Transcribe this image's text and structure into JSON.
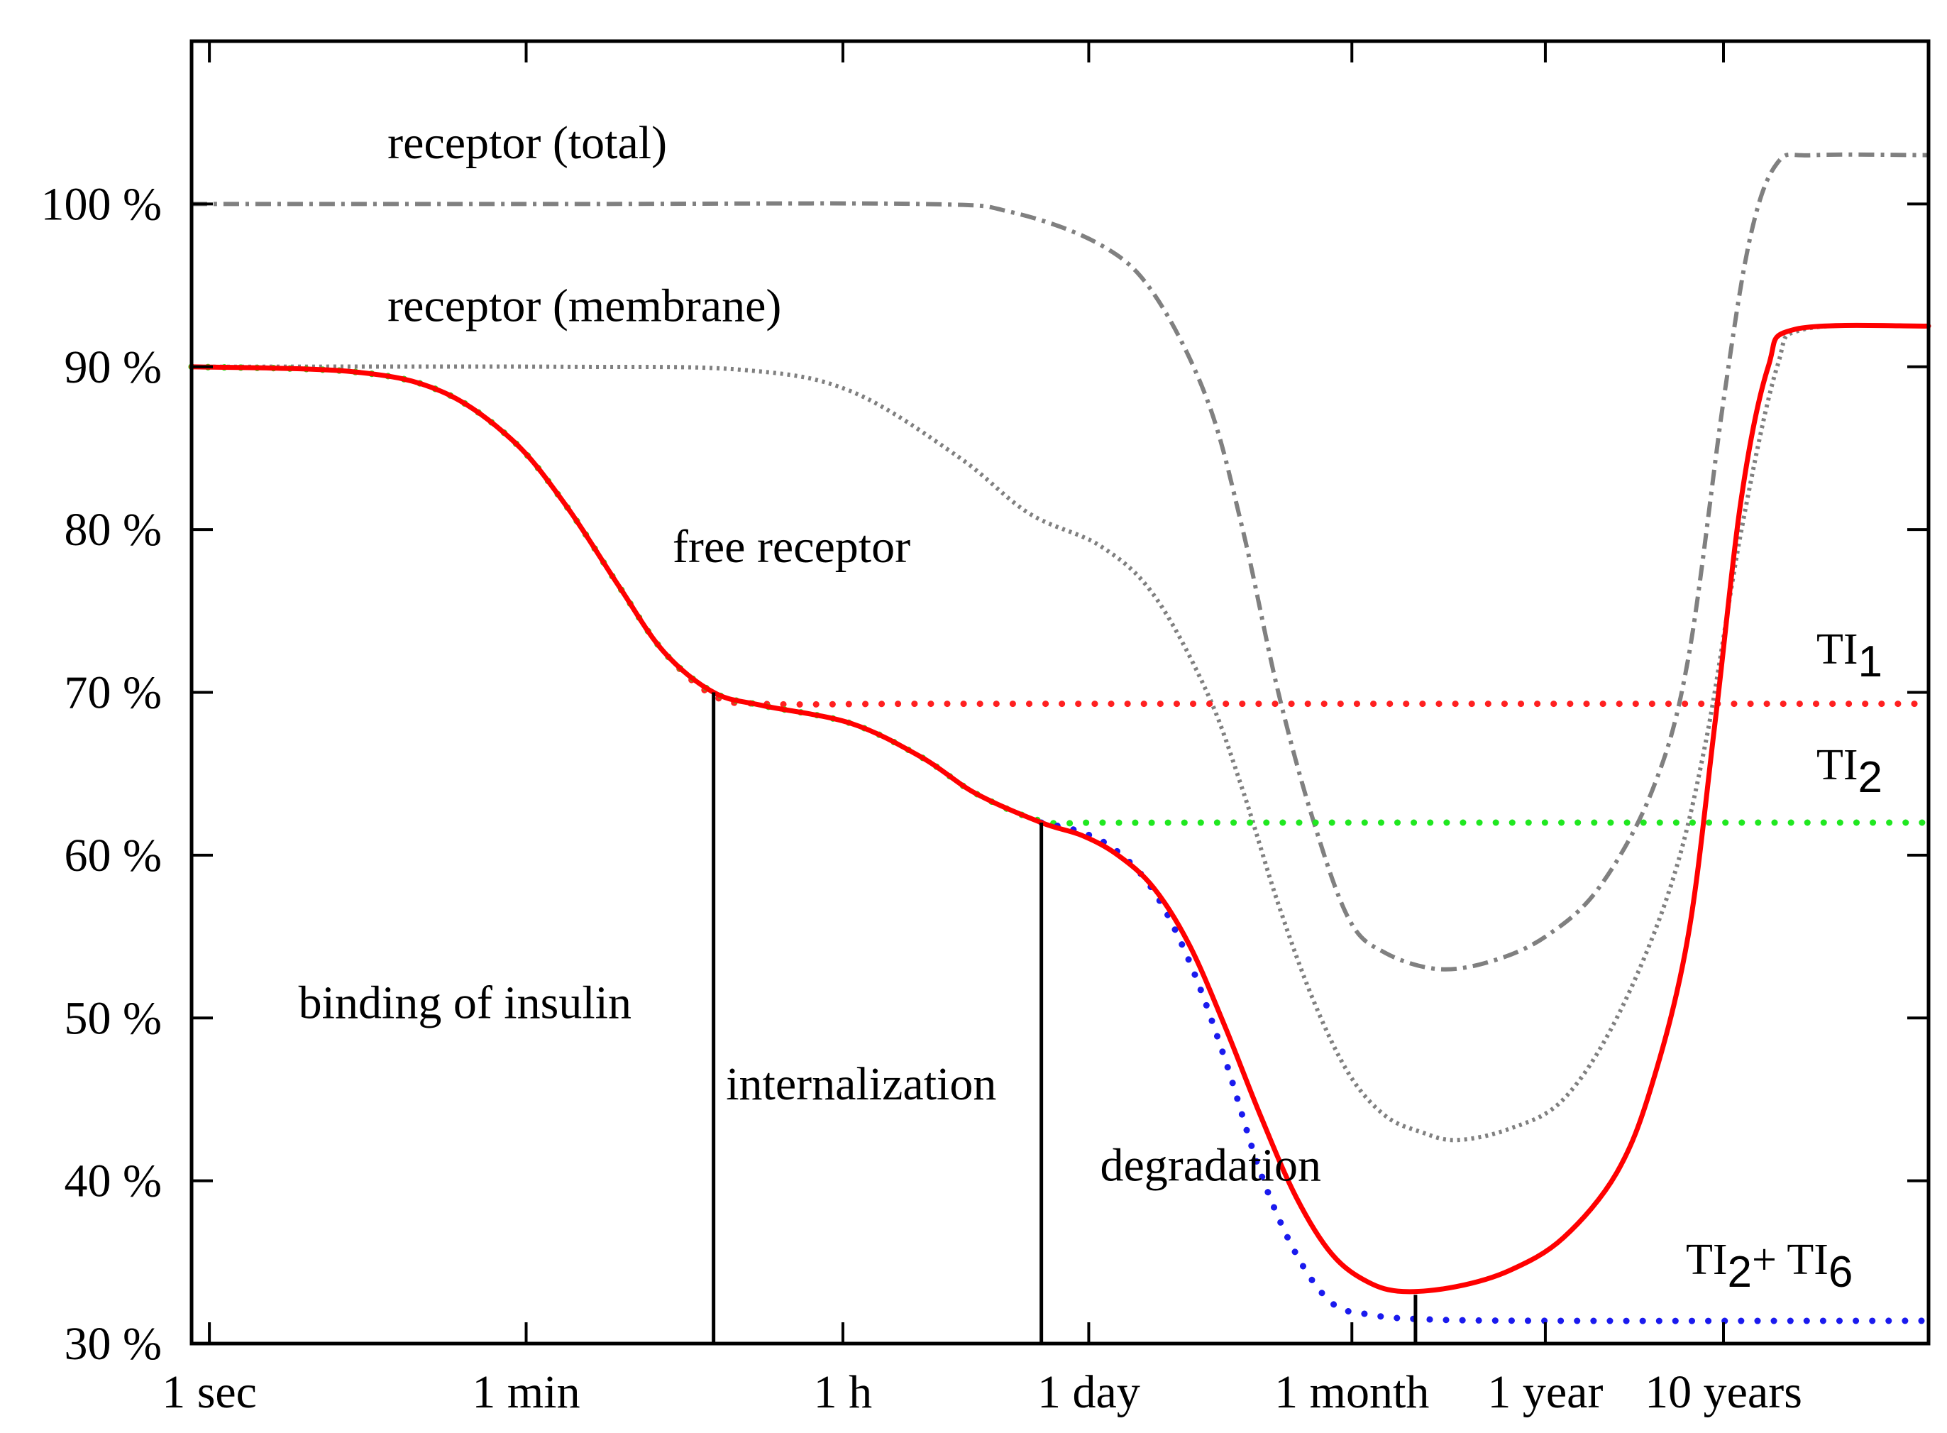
{
  "chart_data": {
    "type": "line",
    "title": "",
    "xlabel": "",
    "ylabel": "",
    "x_scale": "log10 of time in seconds",
    "xlim": [
      -0.1,
      9.65
    ],
    "ylim": [
      30,
      110
    ],
    "grid": false,
    "x_ticks": [
      {
        "value": 0,
        "label": "1 sec"
      },
      {
        "value": 1.778,
        "label": "1 min"
      },
      {
        "value": 3.556,
        "label": "1 h"
      },
      {
        "value": 4.936,
        "label": "1 day"
      },
      {
        "value": 6.413,
        "label": "1 month"
      },
      {
        "value": 7.499,
        "label": "1 year"
      },
      {
        "value": 8.499,
        "label": "10 years"
      }
    ],
    "y_ticks": [
      {
        "value": 30,
        "label": "30 %"
      },
      {
        "value": 40,
        "label": "40 %"
      },
      {
        "value": 50,
        "label": "50 %"
      },
      {
        "value": 60,
        "label": "60 %"
      },
      {
        "value": 70,
        "label": "70 %"
      },
      {
        "value": 80,
        "label": "80 %"
      },
      {
        "value": 90,
        "label": "90 %"
      },
      {
        "value": 100,
        "label": "100 %"
      }
    ],
    "phase_boundaries": [
      {
        "x": 2.83,
        "y_top": 70
      },
      {
        "x": 4.67,
        "y_top": 62
      },
      {
        "x": 6.77,
        "y_top": 33
      }
    ],
    "annotations": [
      {
        "text": "receptor (total)",
        "x": 1.0,
        "y": 102.8
      },
      {
        "text": "receptor (membrane)",
        "x": 1.0,
        "y": 92.8
      },
      {
        "text": "free receptor",
        "x": 2.6,
        "y": 78.0
      },
      {
        "text": "binding of insulin",
        "x": 0.5,
        "y": 50.0
      },
      {
        "text": "internalization",
        "x": 2.9,
        "y": 45.0
      },
      {
        "text": "degradation",
        "x": 5.0,
        "y": 40.0
      }
    ],
    "labels": {
      "ti1": {
        "base": "TI",
        "sub": "1"
      },
      "ti2": {
        "base": "TI",
        "sub": "2"
      },
      "ti26": {
        "base": "TI",
        "sub1": "2",
        "plus": "+ TI",
        "sub2": "6"
      }
    },
    "series": [
      {
        "name": "receptor (total)",
        "color": "#808080",
        "style": "dashdot",
        "points": [
          [
            -0.1,
            100
          ],
          [
            2.0,
            100
          ],
          [
            4.0,
            100
          ],
          [
            4.5,
            99.5
          ],
          [
            5.0,
            97.5
          ],
          [
            5.3,
            94.5
          ],
          [
            5.6,
            88
          ],
          [
            5.8,
            80
          ],
          [
            6.0,
            70
          ],
          [
            6.2,
            62
          ],
          [
            6.4,
            56
          ],
          [
            6.6,
            54
          ],
          [
            6.9,
            53
          ],
          [
            7.2,
            53.5
          ],
          [
            7.5,
            55
          ],
          [
            7.8,
            58
          ],
          [
            8.1,
            64
          ],
          [
            8.3,
            72
          ],
          [
            8.5,
            88
          ],
          [
            8.65,
            98
          ],
          [
            8.8,
            102.5
          ],
          [
            9.0,
            103
          ],
          [
            9.65,
            103
          ]
        ]
      },
      {
        "name": "receptor (membrane)",
        "color": "#808080",
        "style": "dotted",
        "points": [
          [
            -0.1,
            90
          ],
          [
            2.0,
            90
          ],
          [
            3.0,
            89.8
          ],
          [
            3.6,
            88.5
          ],
          [
            4.2,
            84.5
          ],
          [
            4.6,
            81
          ],
          [
            5.0,
            79
          ],
          [
            5.3,
            76
          ],
          [
            5.6,
            70
          ],
          [
            5.8,
            64
          ],
          [
            6.0,
            57
          ],
          [
            6.2,
            51
          ],
          [
            6.4,
            46.5
          ],
          [
            6.6,
            44
          ],
          [
            6.8,
            43
          ],
          [
            7.0,
            42.5
          ],
          [
            7.3,
            43.2
          ],
          [
            7.6,
            45
          ],
          [
            7.9,
            50
          ],
          [
            8.2,
            58
          ],
          [
            8.4,
            67
          ],
          [
            8.6,
            80
          ],
          [
            8.8,
            90
          ],
          [
            8.95,
            92.3
          ],
          [
            9.65,
            92.5
          ]
        ]
      },
      {
        "name": "TI1",
        "color": "#ff2020",
        "style": "dots",
        "points": [
          [
            -0.1,
            90
          ],
          [
            0.8,
            89.7
          ],
          [
            1.3,
            88.5
          ],
          [
            1.7,
            85.5
          ],
          [
            2.0,
            81.5
          ],
          [
            2.3,
            76.5
          ],
          [
            2.55,
            72.5
          ],
          [
            2.83,
            69.8
          ],
          [
            3.1,
            69.3
          ],
          [
            4.0,
            69.3
          ],
          [
            6.0,
            69.3
          ],
          [
            9.65,
            69.3
          ]
        ]
      },
      {
        "name": "TI2",
        "color": "#20e820",
        "style": "dots",
        "points": [
          [
            -0.1,
            90
          ],
          [
            0.8,
            89.7
          ],
          [
            1.3,
            88.5
          ],
          [
            1.7,
            85.5
          ],
          [
            2.0,
            81.5
          ],
          [
            2.3,
            76.5
          ],
          [
            2.55,
            72.5
          ],
          [
            2.83,
            70
          ],
          [
            3.1,
            69.2
          ],
          [
            3.6,
            68.1
          ],
          [
            4.0,
            66
          ],
          [
            4.3,
            63.8
          ],
          [
            4.67,
            62.1
          ],
          [
            5.0,
            62
          ],
          [
            6.0,
            62
          ],
          [
            9.65,
            62
          ]
        ]
      },
      {
        "name": "TI2 + TI6",
        "color": "#1a1aee",
        "style": "dots",
        "points": [
          [
            4.67,
            62
          ],
          [
            4.9,
            61.4
          ],
          [
            5.1,
            60.2
          ],
          [
            5.3,
            57.8
          ],
          [
            5.5,
            53.5
          ],
          [
            5.7,
            47.5
          ],
          [
            5.9,
            40.5
          ],
          [
            6.1,
            35.5
          ],
          [
            6.3,
            32.5
          ],
          [
            6.5,
            31.8
          ],
          [
            6.8,
            31.5
          ],
          [
            7.5,
            31.4
          ],
          [
            9.65,
            31.4
          ]
        ]
      },
      {
        "name": "free receptor",
        "color": "#ff0000",
        "style": "solid",
        "points": [
          [
            -0.1,
            90
          ],
          [
            0.8,
            89.7
          ],
          [
            1.3,
            88.5
          ],
          [
            1.7,
            85.5
          ],
          [
            2.0,
            81.5
          ],
          [
            2.3,
            76.5
          ],
          [
            2.55,
            72.5
          ],
          [
            2.83,
            70
          ],
          [
            3.1,
            69.2
          ],
          [
            3.6,
            68.1
          ],
          [
            4.0,
            66
          ],
          [
            4.3,
            63.8
          ],
          [
            4.67,
            62
          ],
          [
            4.9,
            61.2
          ],
          [
            5.1,
            60
          ],
          [
            5.3,
            58
          ],
          [
            5.5,
            54.5
          ],
          [
            5.7,
            49.5
          ],
          [
            5.9,
            44
          ],
          [
            6.1,
            39
          ],
          [
            6.3,
            35.5
          ],
          [
            6.5,
            33.8
          ],
          [
            6.7,
            33.2
          ],
          [
            7.0,
            33.5
          ],
          [
            7.3,
            34.5
          ],
          [
            7.6,
            36.5
          ],
          [
            7.9,
            40.5
          ],
          [
            8.1,
            46
          ],
          [
            8.3,
            55
          ],
          [
            8.45,
            68
          ],
          [
            8.6,
            82
          ],
          [
            8.75,
            90
          ],
          [
            8.9,
            92.3
          ],
          [
            9.65,
            92.5
          ]
        ]
      }
    ]
  }
}
